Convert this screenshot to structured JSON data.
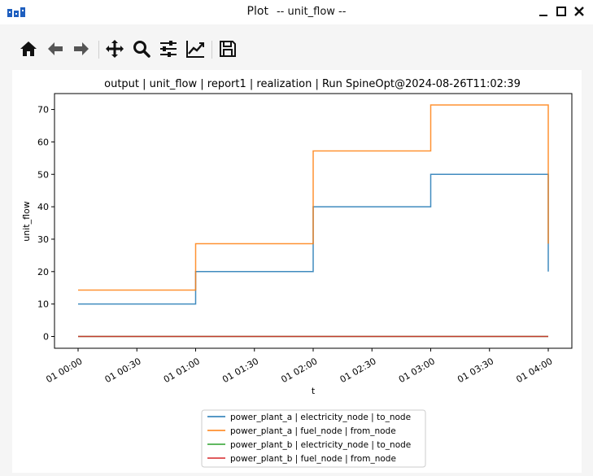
{
  "window": {
    "title": "Plot",
    "subtitle": "-- unit_flow --"
  },
  "toolbar": {
    "buttons": [
      "home",
      "back",
      "forward",
      "pan",
      "zoom",
      "configure-subplots",
      "edit-axis",
      "save"
    ]
  },
  "colors": {
    "series": [
      "#1f77b4",
      "#ff7f0e",
      "#2ca02c",
      "#d62728"
    ]
  },
  "chart_data": {
    "type": "line",
    "step": "post",
    "title": "output | unit_flow | report1 | realization | Run SpineOpt@2024-08-26T11:02:39",
    "xlabel": "t",
    "ylabel": "unit_flow",
    "xlim": [
      "01 00:00",
      "01 04:00"
    ],
    "ylim": [
      0,
      75
    ],
    "x_ticks": [
      "01 00:00",
      "01 00:30",
      "01 01:00",
      "01 01:30",
      "01 02:00",
      "01 02:30",
      "01 03:00",
      "01 03:30",
      "01 04:00"
    ],
    "y_ticks": [
      "0",
      "10",
      "20",
      "30",
      "40",
      "50",
      "60",
      "70"
    ],
    "x": [
      "01 00:00",
      "01 01:00",
      "01 02:00",
      "01 03:00",
      "01 04:00"
    ],
    "series": [
      {
        "name": "power_plant_a | electricity_node | to_node",
        "values": [
          10,
          20,
          40,
          50,
          20
        ]
      },
      {
        "name": "power_plant_a | fuel_node | from_node",
        "values": [
          14.3,
          28.6,
          57.2,
          71.4,
          28.6
        ]
      },
      {
        "name": "power_plant_b | electricity_node | to_node",
        "values": [
          0,
          0,
          0,
          0,
          0
        ]
      },
      {
        "name": "power_plant_b | fuel_node | from_node",
        "values": [
          0,
          0,
          0,
          0,
          0
        ]
      }
    ],
    "legend_position": "bottom-center",
    "grid": false
  }
}
